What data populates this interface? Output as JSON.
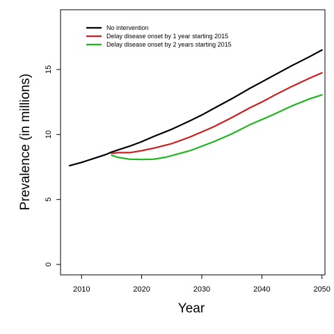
{
  "chart_data": {
    "type": "line",
    "title": "",
    "xlabel": "Year",
    "ylabel": "Prevalence (in millions)",
    "xlim": [
      2006.5,
      2050.5
    ],
    "ylim": [
      -0.8,
      19.6
    ],
    "xticks": [
      2010,
      2020,
      2030,
      2040,
      2050
    ],
    "yticks": [
      0,
      5,
      10,
      15
    ],
    "grid": false,
    "legend_position": "top-left",
    "series": [
      {
        "name": "No intervention",
        "color": "#000000",
        "x": [
          2008,
          2010,
          2012,
          2014,
          2015,
          2016,
          2018,
          2020,
          2022,
          2025,
          2028,
          2030,
          2032,
          2035,
          2038,
          2040,
          2042,
          2045,
          2048,
          2050
        ],
        "y": [
          7.6,
          7.85,
          8.15,
          8.45,
          8.65,
          8.8,
          9.1,
          9.45,
          9.85,
          10.4,
          11.05,
          11.5,
          12.0,
          12.75,
          13.55,
          14.05,
          14.55,
          15.3,
          16.0,
          16.5
        ]
      },
      {
        "name": "Delay disease onset by 1 year starting 2015",
        "color": "#cc1f1f",
        "x": [
          2015,
          2016,
          2018,
          2020,
          2022,
          2025,
          2028,
          2030,
          2032,
          2035,
          2038,
          2040,
          2042,
          2045,
          2048,
          2050
        ],
        "y": [
          8.55,
          8.6,
          8.6,
          8.75,
          8.95,
          9.3,
          9.8,
          10.2,
          10.6,
          11.3,
          12.05,
          12.5,
          13.0,
          13.7,
          14.35,
          14.75
        ]
      },
      {
        "name": "Delay disease onset by 2 years starting 2015",
        "color": "#1fb51f",
        "x": [
          2015,
          2016,
          2018,
          2020,
          2022,
          2024,
          2026,
          2028,
          2030,
          2032,
          2035,
          2038,
          2040,
          2042,
          2045,
          2048,
          2050
        ],
        "y": [
          8.4,
          8.25,
          8.1,
          8.08,
          8.1,
          8.25,
          8.5,
          8.75,
          9.1,
          9.45,
          10.05,
          10.75,
          11.15,
          11.55,
          12.2,
          12.75,
          13.05
        ]
      }
    ]
  }
}
